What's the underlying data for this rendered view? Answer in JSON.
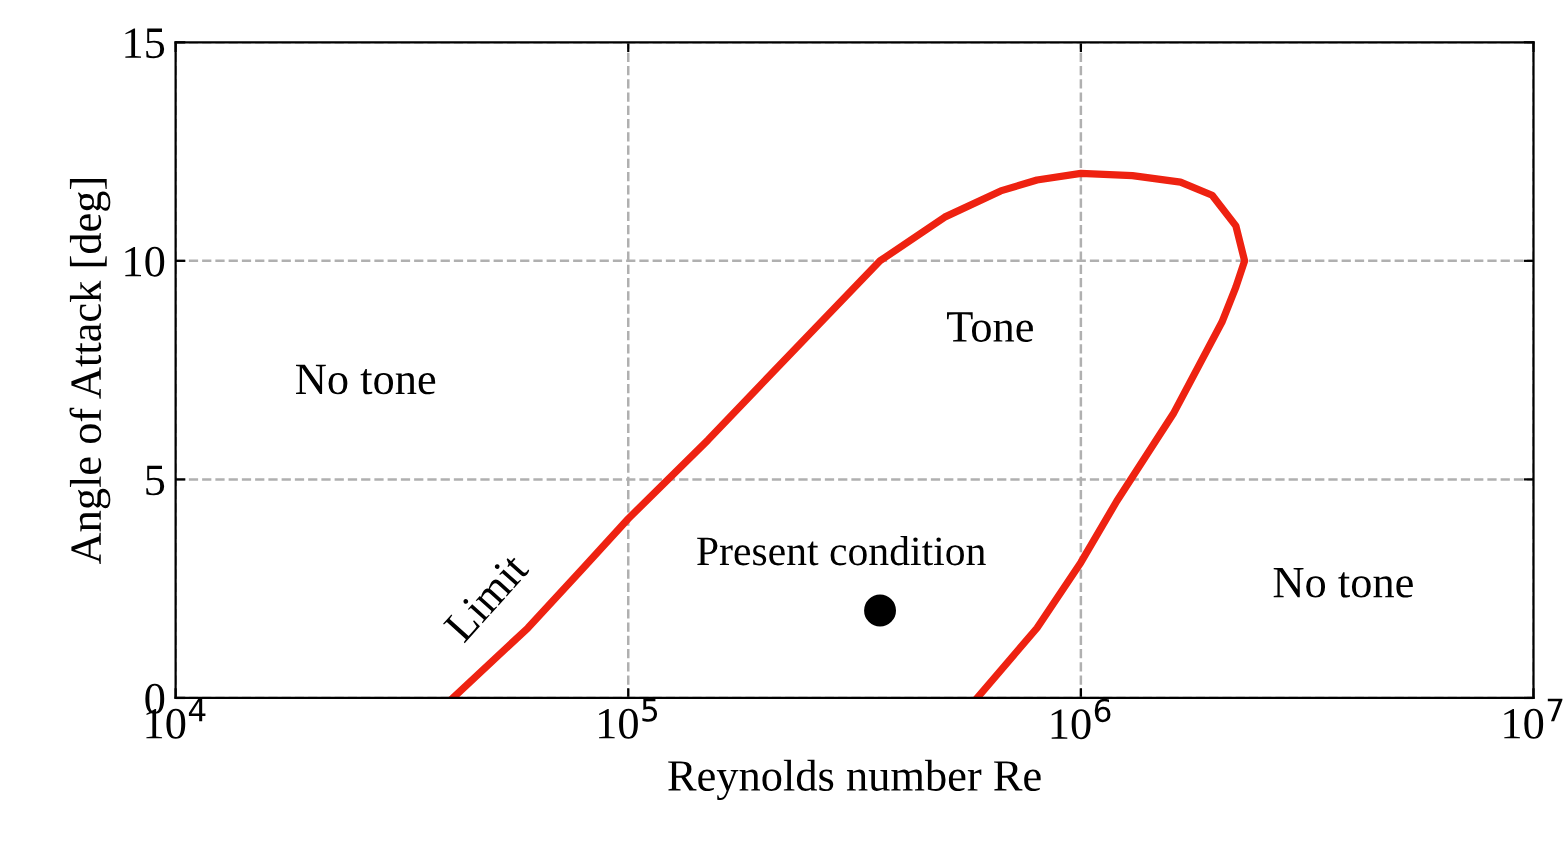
{
  "chart_data": {
    "type": "line",
    "xlabel": "Reynolds number Re",
    "ylabel": "Angle of Attack [deg]",
    "series": [
      {
        "name": "Limit",
        "color": "#ee2211",
        "marker": "none",
        "x": [
          41000,
          60000,
          80000,
          100000,
          150000,
          250000,
          360000,
          500000,
          665000,
          800000,
          1000000,
          1300000,
          1660000,
          1950000,
          2200000,
          2300000,
          2200000,
          2050000,
          1600000,
          1200000,
          1000000,
          800000,
          590000
        ],
        "values": [
          0,
          1.6,
          3.0,
          4.1,
          5.9,
          8.3,
          10.0,
          11.0,
          11.6,
          11.85,
          12.0,
          11.95,
          11.8,
          11.5,
          10.8,
          10.0,
          9.4,
          8.6,
          6.5,
          4.5,
          3.1,
          1.6,
          0
        ]
      },
      {
        "name": "Present condition",
        "type": "scatter",
        "color": "#000000",
        "marker": "circle",
        "x": [
          360000
        ],
        "values": [
          2
        ]
      }
    ],
    "annotations": [
      "No tone",
      "Tone",
      "No tone"
    ],
    "log": "x",
    "xlim": [
      10000,
      10000000
    ],
    "xticks": [
      {
        "value": 10000,
        "label": "10$^{4}$"
      },
      {
        "value": 100000,
        "label": "10$^{5}$"
      },
      {
        "value": 1000000,
        "label": "10$^{6}$"
      },
      {
        "value": 10000000,
        "label": "10$^{7}$"
      }
    ],
    "ylim": [
      0,
      15
    ],
    "yticks": [
      0,
      5,
      10,
      15
    ],
    "grid": true,
    "line_style": "solid"
  }
}
